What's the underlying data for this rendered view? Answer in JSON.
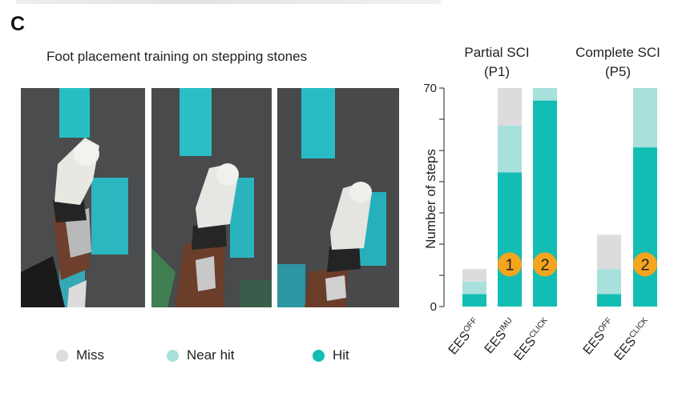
{
  "panel_letter": "C",
  "photo_title": "Foot placement training on stepping stones",
  "legend": [
    {
      "label": "Miss",
      "color": "#dcdcde"
    },
    {
      "label": "Near hit",
      "color": "#a8e0dc"
    },
    {
      "label": "Hit",
      "color": "#12bdb3"
    }
  ],
  "chart_data": {
    "type": "bar",
    "stacked": true,
    "ylabel": "Number of steps",
    "ylim": [
      0,
      70
    ],
    "yticks": [
      0,
      70
    ],
    "group_titles": [
      {
        "line1": "Partial SCI",
        "line2": "(P1)"
      },
      {
        "line1": "Complete SCI",
        "line2": "(P5)"
      }
    ],
    "categories": [
      {
        "base": "EES",
        "sup": "OFF",
        "group": "Partial SCI (P1)"
      },
      {
        "base": "EES",
        "sup": "IMU",
        "group": "Partial SCI (P1)"
      },
      {
        "base": "EES",
        "sup": "CLICK",
        "group": "Partial SCI (P1)"
      },
      {
        "base": "EES",
        "sup": "OFF",
        "group": "Complete SCI (P5)"
      },
      {
        "base": "EES",
        "sup": "CLICK",
        "group": "Complete SCI (P5)"
      }
    ],
    "series": [
      {
        "name": "Hit",
        "color": "#12bdb3",
        "values": [
          4,
          43,
          66,
          4,
          51
        ]
      },
      {
        "name": "Near hit",
        "color": "#a8e0dc",
        "values": [
          4,
          15,
          4,
          8,
          19
        ]
      },
      {
        "name": "Miss",
        "color": "#dcdcde",
        "values": [
          4,
          12,
          0,
          11,
          0
        ]
      }
    ],
    "badges": [
      {
        "category_index": 1,
        "label": "1",
        "y_value": 13.5
      },
      {
        "category_index": 2,
        "label": "2",
        "y_value": 13.5
      },
      {
        "category_index": 4,
        "label": "2",
        "y_value": 13.5
      }
    ],
    "badge_color": "#f5a41d"
  }
}
